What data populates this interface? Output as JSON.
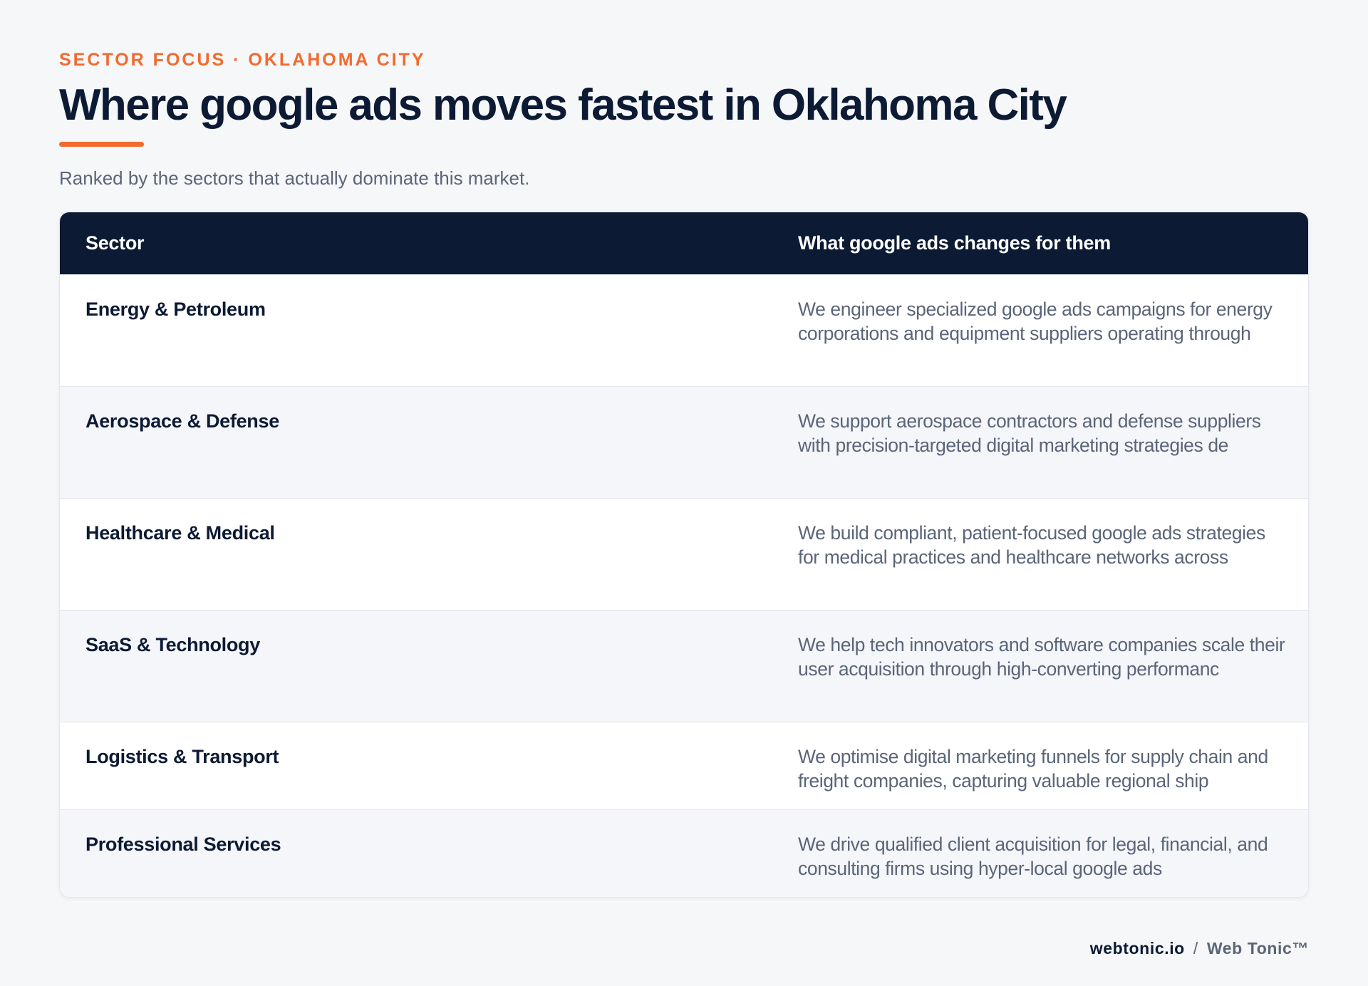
{
  "header": {
    "kicker": "SECTOR FOCUS · OKLAHOMA CITY",
    "title": "Where google ads moves fastest in Oklahoma City",
    "subtitle": "Ranked by the sectors that actually dominate this market."
  },
  "table": {
    "columns": [
      "Sector",
      "What google ads changes for them"
    ],
    "rows": [
      {
        "sector": "Energy & Petroleum",
        "description": "We engineer specialized google ads campaigns for energy corporations and equipment suppliers operating through"
      },
      {
        "sector": "Aerospace & Defense",
        "description": "We support aerospace contractors and defense suppliers with precision-targeted digital marketing strategies de"
      },
      {
        "sector": "Healthcare & Medical",
        "description": "We build compliant, patient-focused google ads strategies for medical practices and healthcare networks across"
      },
      {
        "sector": "SaaS & Technology",
        "description": "We help tech innovators and software companies scale their user acquisition through high-converting performanc"
      },
      {
        "sector": "Logistics & Transport",
        "description": "We optimise digital marketing funnels for supply chain and freight companies, capturing valuable regional ship"
      },
      {
        "sector": "Professional Services",
        "description": "We drive qualified client acquisition for legal, financial, and consulting firms using hyper-local google ads"
      }
    ]
  },
  "footer": {
    "domain": "webtonic.io",
    "separator": "/",
    "brand": "Web Tonic™"
  },
  "colors": {
    "accent": "#f26a2e",
    "navy": "#0c1a33",
    "muted": "#5b6578",
    "background": "#f6f7f9"
  }
}
